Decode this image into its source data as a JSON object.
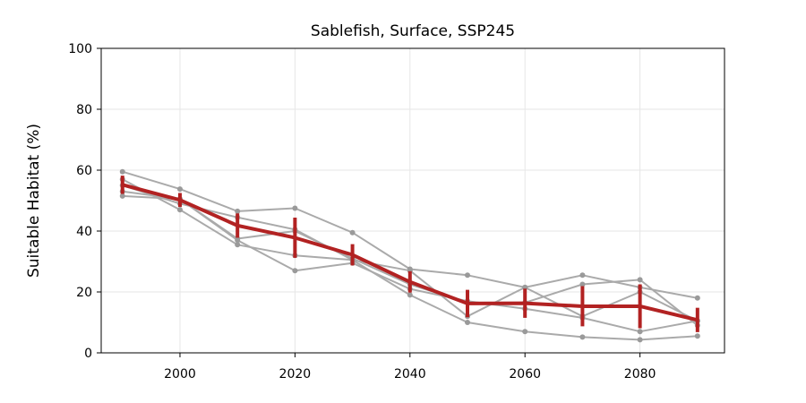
{
  "chart_data": {
    "type": "line",
    "title": "Sablefish, Surface, SSP245",
    "xlabel": "",
    "ylabel": "Suitable Habitat (%)",
    "xlim": [
      1986.3,
      2094.7
    ],
    "ylim": [
      0,
      100
    ],
    "xticks": [
      2000,
      2020,
      2040,
      2060,
      2080
    ],
    "yticks": [
      0,
      20,
      40,
      60,
      80,
      100
    ],
    "grid": true,
    "x": [
      1990,
      2000,
      2010,
      2020,
      2030,
      2040,
      2050,
      2060,
      2070,
      2080,
      2090
    ],
    "member_series": [
      {
        "values": [
          59.5,
          53.8,
          46.5,
          47.5,
          39.5,
          27.5,
          25.5,
          21.5,
          25.5,
          21.5,
          18.0
        ]
      },
      {
        "values": [
          57.0,
          47.0,
          35.5,
          32.0,
          30.5,
          27.0,
          12.0,
          21.5,
          12.0,
          20.0,
          10.5
        ]
      },
      {
        "values": [
          55.0,
          49.0,
          44.5,
          40.5,
          30.5,
          19.0,
          10.0,
          7.0,
          5.2,
          4.3,
          5.5
        ]
      },
      {
        "values": [
          53.0,
          50.5,
          37.5,
          40.0,
          31.0,
          22.5,
          16.5,
          16.5,
          22.5,
          24.0,
          9.0
        ]
      },
      {
        "values": [
          51.5,
          50.5,
          37.0,
          27.0,
          29.5,
          21.0,
          17.0,
          14.5,
          11.5,
          7.0,
          10.5
        ]
      }
    ],
    "mean_series": {
      "values": [
        55.2,
        50.2,
        41.8,
        37.8,
        32.2,
        23.3,
        16.2,
        16.3,
        15.3,
        15.3,
        10.8
      ],
      "error": [
        3.0,
        2.3,
        4.0,
        6.6,
        3.5,
        3.5,
        4.5,
        4.8,
        6.6,
        7.2,
        4.0
      ]
    },
    "colors": {
      "members": "#aaaaaa",
      "member_markers": "#9a9a9a",
      "mean": "#b22222"
    }
  }
}
